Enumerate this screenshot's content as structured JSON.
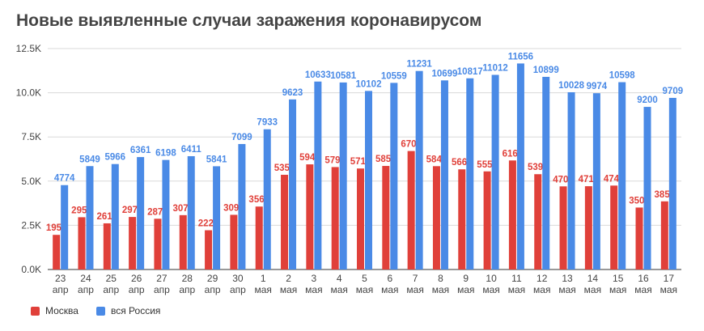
{
  "colors": {
    "series_0": "#e0403a",
    "series_1": "#4a8ae6",
    "grid": "#d9d9d9",
    "axis_text": "#444444"
  },
  "chart_data": {
    "type": "bar",
    "title": "Новые выявленные случаи заражения коронавирусом",
    "ylim": [
      0,
      12500
    ],
    "y_ticks": [
      {
        "value": 0,
        "label": "0.0K"
      },
      {
        "value": 2500,
        "label": "2.5K"
      },
      {
        "value": 5000,
        "label": "5.0K"
      },
      {
        "value": 7500,
        "label": "7.5K"
      },
      {
        "value": 10000,
        "label": "10.0K"
      },
      {
        "value": 12500,
        "label": "12.5K"
      }
    ],
    "grid": true,
    "legend_position": "bottom-left",
    "categories": [
      {
        "day": "23",
        "month": "апр"
      },
      {
        "day": "24",
        "month": "апр"
      },
      {
        "day": "25",
        "month": "апр"
      },
      {
        "day": "26",
        "month": "апр"
      },
      {
        "day": "27",
        "month": "апр"
      },
      {
        "day": "28",
        "month": "апр"
      },
      {
        "day": "29",
        "month": "апр"
      },
      {
        "day": "30",
        "month": "апр"
      },
      {
        "day": "1",
        "month": "мая"
      },
      {
        "day": "2",
        "month": "мая"
      },
      {
        "day": "3",
        "month": "мая"
      },
      {
        "day": "4",
        "month": "мая"
      },
      {
        "day": "5",
        "month": "мая"
      },
      {
        "day": "6",
        "month": "мая"
      },
      {
        "day": "7",
        "month": "мая"
      },
      {
        "day": "8",
        "month": "мая"
      },
      {
        "day": "9",
        "month": "мая"
      },
      {
        "day": "10",
        "month": "мая"
      },
      {
        "day": "11",
        "month": "мая"
      },
      {
        "day": "12",
        "month": "мая"
      },
      {
        "day": "13",
        "month": "мая"
      },
      {
        "day": "14",
        "month": "мая"
      },
      {
        "day": "15",
        "month": "мая"
      },
      {
        "day": "16",
        "month": "мая"
      },
      {
        "day": "17",
        "month": "мая"
      }
    ],
    "series": [
      {
        "name": "Москва",
        "color": "#e0403a",
        "values": [
          1959,
          2957,
          2612,
          2971,
          2871,
          3075,
          2220,
          3093,
          3561,
          5358,
          5948,
          5795,
          5714,
          5858,
          6703,
          5846,
          5667,
          5551,
          6169,
          5392,
          4703,
          4712,
          4748,
          3505,
          3855
        ]
      },
      {
        "name": "вся Россия",
        "color": "#4a8ae6",
        "values": [
          4774,
          5849,
          5966,
          6361,
          6198,
          6411,
          5841,
          7099,
          7933,
          9623,
          10633,
          10581,
          10102,
          10559,
          11231,
          10699,
          10817,
          11012,
          11656,
          10899,
          10028,
          9974,
          10598,
          9200,
          9709
        ]
      }
    ]
  }
}
